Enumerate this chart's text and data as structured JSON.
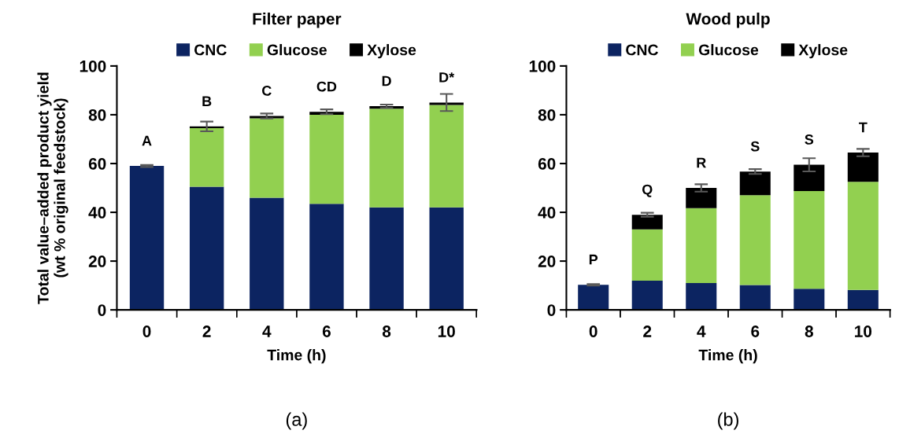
{
  "chart_data": [
    {
      "type": "bar",
      "title": "Filter paper",
      "xlabel": "Time (h)",
      "ylabel": "Total value–added product yield\n(wt % original feedstock)",
      "categories": [
        "0",
        "2",
        "4",
        "6",
        "8",
        "10"
      ],
      "stacked": true,
      "ylim": [
        0,
        100
      ],
      "yticks": [
        0,
        20,
        40,
        60,
        80,
        100
      ],
      "legend": "top",
      "grid": false,
      "series": [
        {
          "name": "CNC",
          "color": "#0c2461",
          "values": [
            59,
            50.5,
            46,
            43.5,
            42,
            42
          ]
        },
        {
          "name": "Glucose",
          "color": "#92d050",
          "values": [
            0,
            24,
            32.5,
            36.5,
            40.5,
            42
          ]
        },
        {
          "name": "Xylose",
          "color": "#000000",
          "values": [
            0,
            0.7,
            1,
            1.2,
            1,
            1
          ],
          "errors": [
            0.4,
            2,
            1,
            1,
            0.7,
            3.5
          ]
        }
      ],
      "annotations": [
        {
          "text": "A",
          "x": "0",
          "y": 59
        },
        {
          "text": "B",
          "x": "2",
          "y": 75.2
        },
        {
          "text": "C",
          "x": "4",
          "y": 79.5
        },
        {
          "text": "CD",
          "x": "6",
          "y": 81.2
        },
        {
          "text": "D",
          "x": "8",
          "y": 83.5
        },
        {
          "text": "D*",
          "x": "10",
          "y": 85
        },
        "(a)"
      ]
    },
    {
      "type": "bar",
      "title": "Wood pulp",
      "xlabel": "Time (h)",
      "categories": [
        "0",
        "2",
        "4",
        "6",
        "8",
        "10"
      ],
      "stacked": true,
      "ylim": [
        0,
        100
      ],
      "yticks": [
        0,
        20,
        40,
        60,
        80,
        100
      ],
      "legend": "top",
      "grid": false,
      "series": [
        {
          "name": "CNC",
          "color": "#0c2461",
          "values": [
            10.3,
            12,
            11,
            10.2,
            8.7,
            8.2
          ]
        },
        {
          "name": "Glucose",
          "color": "#92d050",
          "values": [
            0,
            21,
            30.7,
            36.8,
            40,
            44.3
          ]
        },
        {
          "name": "Xylose",
          "color": "#000000",
          "values": [
            0,
            6,
            8.3,
            9.7,
            10.8,
            12
          ],
          "errors": [
            0.3,
            0.8,
            1.5,
            1,
            2.7,
            1.5
          ]
        }
      ],
      "annotations": [
        {
          "text": "P",
          "x": "0",
          "y": 10.3
        },
        {
          "text": "Q",
          "x": "2",
          "y": 39
        },
        {
          "text": "R",
          "x": "4",
          "y": 50
        },
        {
          "text": "S",
          "x": "6",
          "y": 56.7
        },
        {
          "text": "S",
          "x": "8",
          "y": 59.5
        },
        {
          "text": "T",
          "x": "10",
          "y": 64.5
        },
        "(b)"
      ]
    }
  ]
}
